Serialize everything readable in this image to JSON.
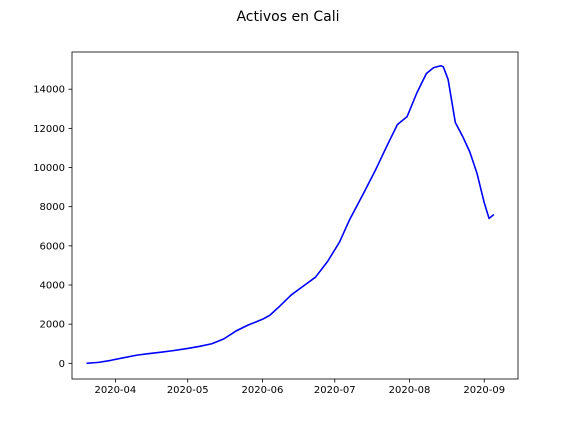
{
  "chart_data": {
    "type": "line",
    "title": "Activos en Cali",
    "xlabel": "",
    "ylabel": "",
    "xlim": [
      "2020-03-14",
      "2020-09-15"
    ],
    "ylim": [
      -800,
      15900
    ],
    "x_ticks": [
      "2020-04",
      "2020-05",
      "2020-06",
      "2020-07",
      "2020-08",
      "2020-09"
    ],
    "y_ticks": [
      0,
      2000,
      4000,
      6000,
      8000,
      10000,
      12000,
      14000
    ],
    "grid": false,
    "color": "#0000ff",
    "series": [
      {
        "name": "Activos",
        "x": [
          "2020-03-20",
          "2020-03-25",
          "2020-03-30",
          "2020-04-05",
          "2020-04-10",
          "2020-04-15",
          "2020-04-20",
          "2020-04-25",
          "2020-05-01",
          "2020-05-06",
          "2020-05-11",
          "2020-05-16",
          "2020-05-21",
          "2020-05-26",
          "2020-06-01",
          "2020-06-04",
          "2020-06-08",
          "2020-06-13",
          "2020-06-18",
          "2020-06-23",
          "2020-06-28",
          "2020-07-03",
          "2020-07-07",
          "2020-07-13",
          "2020-07-18",
          "2020-07-23",
          "2020-07-27",
          "2020-07-31",
          "2020-08-04",
          "2020-08-08",
          "2020-08-11",
          "2020-08-14",
          "2020-08-15",
          "2020-08-17",
          "2020-08-20",
          "2020-08-23",
          "2020-08-26",
          "2020-08-29",
          "2020-09-01",
          "2020-09-03",
          "2020-09-05"
        ],
        "values": [
          0,
          50,
          150,
          300,
          420,
          500,
          570,
          650,
          760,
          870,
          1000,
          1250,
          1650,
          1950,
          2250,
          2450,
          2900,
          3500,
          3950,
          4400,
          5200,
          6200,
          7300,
          8700,
          9900,
          11200,
          12200,
          12600,
          13800,
          14800,
          15100,
          15200,
          15150,
          14500,
          12300,
          11600,
          10800,
          9700,
          8200,
          7400,
          7600
        ]
      }
    ]
  }
}
